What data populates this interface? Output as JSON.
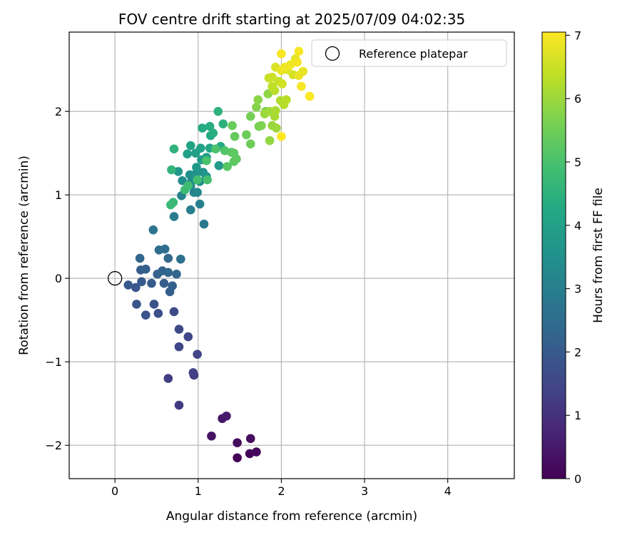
{
  "chart_data": {
    "type": "scatter",
    "title": "FOV centre drift starting at 2025/07/09 04:02:35",
    "xlabel": "Angular distance from reference (arcmin)",
    "ylabel": "Rotation from reference (arcmin)",
    "xlim": [
      -0.55,
      4.8
    ],
    "ylim": [
      -2.4,
      2.95
    ],
    "xticks": [
      0,
      1,
      2,
      3,
      4
    ],
    "yticks": [
      -2,
      -1,
      0,
      1,
      2
    ],
    "grid": true,
    "legend": {
      "position": "top-right",
      "entries": [
        "Reference platepar"
      ]
    },
    "reference_point": {
      "x": 0,
      "y": 0,
      "label": "Reference platepar"
    },
    "colorbar": {
      "label": "Hours from first FF file",
      "colormap": "viridis",
      "range": [
        0,
        7.05
      ],
      "ticks": [
        0,
        1,
        2,
        3,
        4,
        5,
        6,
        7
      ]
    },
    "points": [
      {
        "x": 1.47,
        "y": -2.15,
        "c": 0.05
      },
      {
        "x": 1.62,
        "y": -2.1,
        "c": 0.1
      },
      {
        "x": 1.7,
        "y": -2.08,
        "c": 0.15
      },
      {
        "x": 1.47,
        "y": -1.97,
        "c": 0.2
      },
      {
        "x": 1.63,
        "y": -1.92,
        "c": 0.25
      },
      {
        "x": 1.16,
        "y": -1.89,
        "c": 0.35
      },
      {
        "x": 1.29,
        "y": -1.68,
        "c": 0.45
      },
      {
        "x": 1.34,
        "y": -1.65,
        "c": 0.5
      },
      {
        "x": 0.77,
        "y": -1.52,
        "c": 1.2
      },
      {
        "x": 0.64,
        "y": -1.2,
        "c": 1.25
      },
      {
        "x": 0.95,
        "y": -1.16,
        "c": 1.3
      },
      {
        "x": 0.94,
        "y": -1.13,
        "c": 1.35
      },
      {
        "x": 0.99,
        "y": -0.91,
        "c": 1.4
      },
      {
        "x": 0.88,
        "y": -0.7,
        "c": 1.45
      },
      {
        "x": 0.77,
        "y": -0.82,
        "c": 1.5
      },
      {
        "x": 0.77,
        "y": -0.61,
        "c": 1.55
      },
      {
        "x": 0.71,
        "y": -0.4,
        "c": 1.6
      },
      {
        "x": 0.52,
        "y": -0.42,
        "c": 1.7
      },
      {
        "x": 0.47,
        "y": -0.31,
        "c": 1.75
      },
      {
        "x": 0.37,
        "y": -0.44,
        "c": 1.8
      },
      {
        "x": 0.26,
        "y": -0.31,
        "c": 1.85
      },
      {
        "x": 0.25,
        "y": -0.11,
        "c": 1.9
      },
      {
        "x": 0.16,
        "y": -0.08,
        "c": 1.95
      },
      {
        "x": 0.32,
        "y": -0.04,
        "c": 2.0
      },
      {
        "x": 0.44,
        "y": -0.06,
        "c": 2.0
      },
      {
        "x": 0.59,
        "y": -0.06,
        "c": 2.05
      },
      {
        "x": 0.66,
        "y": -0.16,
        "c": 2.1
      },
      {
        "x": 0.69,
        "y": -0.09,
        "c": 2.15
      },
      {
        "x": 0.31,
        "y": 0.1,
        "c": 2.1
      },
      {
        "x": 0.37,
        "y": 0.11,
        "c": 2.15
      },
      {
        "x": 0.51,
        "y": 0.05,
        "c": 2.2
      },
      {
        "x": 0.57,
        "y": 0.09,
        "c": 2.25
      },
      {
        "x": 0.64,
        "y": 0.07,
        "c": 2.3
      },
      {
        "x": 0.74,
        "y": 0.05,
        "c": 2.35
      },
      {
        "x": 0.3,
        "y": 0.24,
        "c": 2.3
      },
      {
        "x": 0.64,
        "y": 0.24,
        "c": 2.4
      },
      {
        "x": 0.53,
        "y": 0.34,
        "c": 2.5
      },
      {
        "x": 0.6,
        "y": 0.35,
        "c": 2.55
      },
      {
        "x": 0.79,
        "y": 0.23,
        "c": 2.6
      },
      {
        "x": 0.46,
        "y": 0.58,
        "c": 2.7
      },
      {
        "x": 1.07,
        "y": 0.65,
        "c": 2.8
      },
      {
        "x": 0.71,
        "y": 0.74,
        "c": 2.9
      },
      {
        "x": 0.91,
        "y": 0.82,
        "c": 3.0
      },
      {
        "x": 1.02,
        "y": 0.89,
        "c": 3.05
      },
      {
        "x": 0.8,
        "y": 0.99,
        "c": 3.1
      },
      {
        "x": 0.95,
        "y": 1.03,
        "c": 3.15
      },
      {
        "x": 0.99,
        "y": 1.03,
        "c": 3.2
      },
      {
        "x": 0.91,
        "y": 1.11,
        "c": 3.3
      },
      {
        "x": 0.92,
        "y": 1.16,
        "c": 3.4
      },
      {
        "x": 0.81,
        "y": 1.17,
        "c": 3.45
      },
      {
        "x": 1.02,
        "y": 1.16,
        "c": 3.5
      },
      {
        "x": 0.9,
        "y": 1.24,
        "c": 3.5
      },
      {
        "x": 0.97,
        "y": 1.25,
        "c": 3.55
      },
      {
        "x": 1.06,
        "y": 1.27,
        "c": 3.6
      },
      {
        "x": 1.1,
        "y": 1.22,
        "c": 3.65
      },
      {
        "x": 0.76,
        "y": 1.28,
        "c": 3.7
      },
      {
        "x": 0.98,
        "y": 1.33,
        "c": 3.75
      },
      {
        "x": 1.25,
        "y": 1.35,
        "c": 3.8
      },
      {
        "x": 1.04,
        "y": 1.42,
        "c": 3.85
      },
      {
        "x": 1.1,
        "y": 1.45,
        "c": 3.9
      },
      {
        "x": 0.97,
        "y": 1.5,
        "c": 3.95
      },
      {
        "x": 0.87,
        "y": 1.49,
        "c": 4.0
      },
      {
        "x": 1.03,
        "y": 1.56,
        "c": 4.05
      },
      {
        "x": 0.91,
        "y": 1.59,
        "c": 4.1
      },
      {
        "x": 1.14,
        "y": 1.56,
        "c": 4.15
      },
      {
        "x": 1.15,
        "y": 1.71,
        "c": 4.2
      },
      {
        "x": 1.27,
        "y": 1.58,
        "c": 4.25
      },
      {
        "x": 1.05,
        "y": 1.8,
        "c": 4.3
      },
      {
        "x": 1.14,
        "y": 1.82,
        "c": 4.35
      },
      {
        "x": 1.18,
        "y": 1.74,
        "c": 4.4
      },
      {
        "x": 1.3,
        "y": 1.85,
        "c": 4.45
      },
      {
        "x": 1.24,
        "y": 2.0,
        "c": 4.5
      },
      {
        "x": 0.71,
        "y": 1.55,
        "c": 4.55
      },
      {
        "x": 0.68,
        "y": 1.3,
        "c": 4.6
      },
      {
        "x": 0.7,
        "y": 0.91,
        "c": 4.7
      },
      {
        "x": 0.67,
        "y": 0.88,
        "c": 4.75
      },
      {
        "x": 0.84,
        "y": 1.06,
        "c": 4.8
      },
      {
        "x": 0.88,
        "y": 1.11,
        "c": 4.85
      },
      {
        "x": 0.99,
        "y": 1.18,
        "c": 4.9
      },
      {
        "x": 1.11,
        "y": 1.18,
        "c": 4.95
      },
      {
        "x": 1.1,
        "y": 1.41,
        "c": 5.0
      },
      {
        "x": 1.21,
        "y": 1.55,
        "c": 5.05
      },
      {
        "x": 1.32,
        "y": 1.53,
        "c": 5.1
      },
      {
        "x": 1.4,
        "y": 1.51,
        "c": 5.15
      },
      {
        "x": 1.35,
        "y": 1.34,
        "c": 5.2
      },
      {
        "x": 1.43,
        "y": 1.4,
        "c": 5.25
      },
      {
        "x": 1.46,
        "y": 1.43,
        "c": 5.3
      },
      {
        "x": 1.43,
        "y": 1.5,
        "c": 5.3
      },
      {
        "x": 1.44,
        "y": 1.7,
        "c": 5.35
      },
      {
        "x": 1.41,
        "y": 1.83,
        "c": 5.4
      },
      {
        "x": 1.58,
        "y": 1.72,
        "c": 5.45
      },
      {
        "x": 1.63,
        "y": 1.61,
        "c": 5.5
      },
      {
        "x": 1.63,
        "y": 1.94,
        "c": 5.55
      },
      {
        "x": 1.73,
        "y": 1.82,
        "c": 5.6
      },
      {
        "x": 1.76,
        "y": 1.83,
        "c": 5.65
      },
      {
        "x": 1.81,
        "y": 2.0,
        "c": 5.7
      },
      {
        "x": 1.7,
        "y": 2.05,
        "c": 5.75
      },
      {
        "x": 1.72,
        "y": 2.14,
        "c": 5.8
      },
      {
        "x": 1.84,
        "y": 2.21,
        "c": 5.85
      },
      {
        "x": 1.86,
        "y": 1.65,
        "c": 5.9
      },
      {
        "x": 1.89,
        "y": 1.83,
        "c": 5.95
      },
      {
        "x": 1.94,
        "y": 1.8,
        "c": 6.0
      },
      {
        "x": 1.8,
        "y": 1.97,
        "c": 6.0
      },
      {
        "x": 1.86,
        "y": 2.0,
        "c": 6.05
      },
      {
        "x": 1.92,
        "y": 1.94,
        "c": 6.1
      },
      {
        "x": 1.93,
        "y": 2.01,
        "c": 6.15
      },
      {
        "x": 1.99,
        "y": 2.13,
        "c": 6.2
      },
      {
        "x": 2.03,
        "y": 2.08,
        "c": 6.25
      },
      {
        "x": 2.06,
        "y": 2.14,
        "c": 6.3
      },
      {
        "x": 1.92,
        "y": 2.25,
        "c": 6.3
      },
      {
        "x": 1.89,
        "y": 2.3,
        "c": 6.35
      },
      {
        "x": 1.97,
        "y": 2.36,
        "c": 6.4
      },
      {
        "x": 1.85,
        "y": 2.4,
        "c": 6.45
      },
      {
        "x": 1.89,
        "y": 2.41,
        "c": 6.5
      },
      {
        "x": 2.01,
        "y": 2.33,
        "c": 6.55
      },
      {
        "x": 2.14,
        "y": 2.44,
        "c": 6.6
      },
      {
        "x": 1.93,
        "y": 2.53,
        "c": 6.65
      },
      {
        "x": 2.07,
        "y": 2.5,
        "c": 6.7
      },
      {
        "x": 2.17,
        "y": 2.63,
        "c": 6.75
      },
      {
        "x": 2.26,
        "y": 2.48,
        "c": 6.8
      },
      {
        "x": 2.21,
        "y": 2.43,
        "c": 6.82
      },
      {
        "x": 2.0,
        "y": 2.49,
        "c": 6.85
      },
      {
        "x": 2.04,
        "y": 2.53,
        "c": 6.9
      },
      {
        "x": 2.11,
        "y": 2.56,
        "c": 6.92
      },
      {
        "x": 2.19,
        "y": 2.59,
        "c": 6.95
      },
      {
        "x": 2.21,
        "y": 2.72,
        "c": 6.97
      },
      {
        "x": 2.0,
        "y": 2.69,
        "c": 7.0
      },
      {
        "x": 2.24,
        "y": 2.3,
        "c": 7.0
      },
      {
        "x": 2.34,
        "y": 2.18,
        "c": 7.02
      },
      {
        "x": 2.0,
        "y": 1.7,
        "c": 7.04
      }
    ]
  }
}
